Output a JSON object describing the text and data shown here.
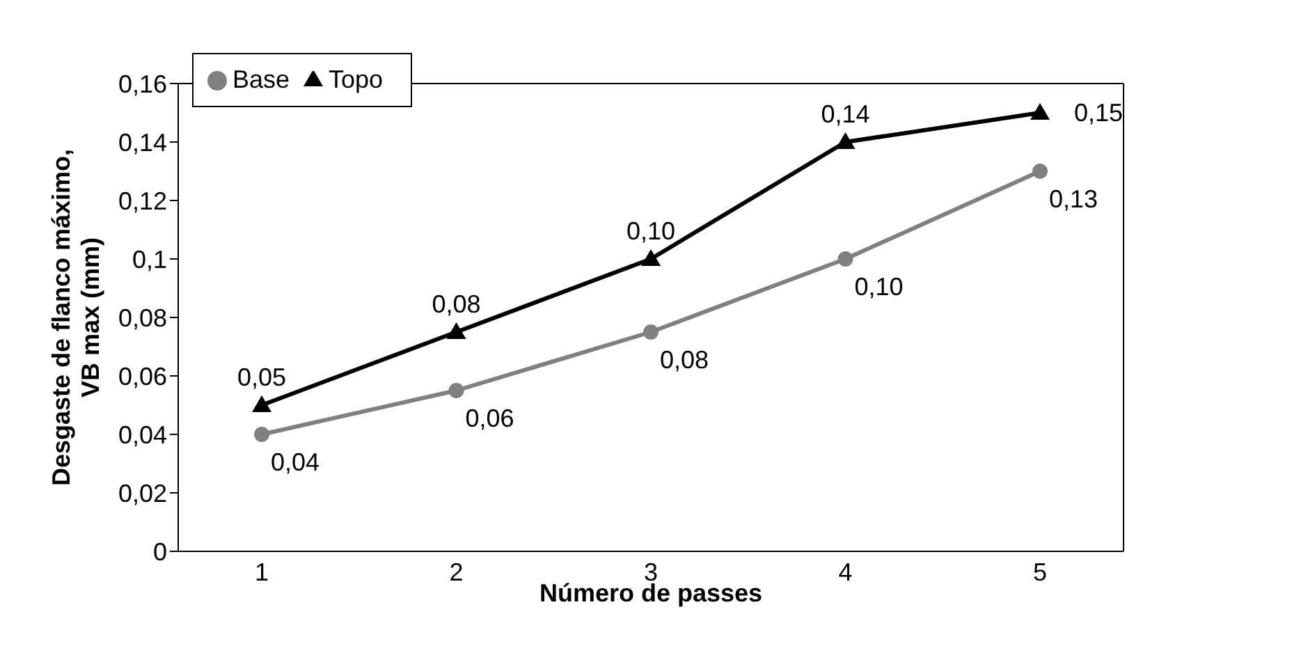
{
  "chart_data": {
    "type": "line",
    "xlabel": "Número de passes",
    "ylabel": "Desgaste de flanco máximo, VB max (mm)",
    "categories": [
      "1",
      "2",
      "3",
      "4",
      "5"
    ],
    "series": [
      {
        "name": "Base",
        "color": "#808080",
        "marker": "circle",
        "values": [
          0.04,
          0.055,
          0.075,
          0.1,
          0.13
        ],
        "value_labels": [
          "0,04",
          "0,06",
          "0,08",
          "0,10",
          "0,13"
        ]
      },
      {
        "name": "Topo",
        "color": "#000000",
        "marker": "triangle",
        "values": [
          0.05,
          0.075,
          0.1,
          0.14,
          0.15
        ],
        "value_labels": [
          "0,05",
          "0,08",
          "0,10",
          "0,14",
          "0,15"
        ]
      }
    ],
    "ylim": [
      0,
      0.16
    ],
    "yticks": [
      0,
      {
        "value": 0.02,
        "label": "0,02"
      },
      {
        "value": 0.04,
        "label": "0,04"
      },
      {
        "value": 0.06,
        "label": "0,06"
      },
      {
        "value": 0.08,
        "label": "0,08"
      },
      {
        "value": 0.1,
        "label": "0,1"
      },
      {
        "value": 0.12,
        "label": "0,12"
      },
      {
        "value": 0.14,
        "label": "0,14"
      },
      {
        "value": 0.16,
        "label": "0,16"
      }
    ],
    "grid": false,
    "legend": "top left",
    "line_style": "solid"
  }
}
